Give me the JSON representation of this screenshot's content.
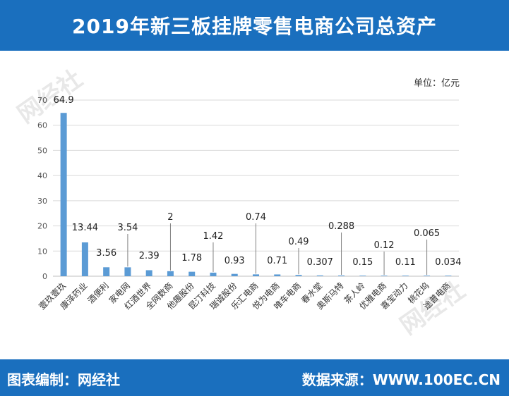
{
  "header": {
    "title": "2019年新三板挂牌零售电商公司总资产"
  },
  "unit": "单位：亿元",
  "footer": {
    "left": "图表编制：网经社",
    "right": "数据来源：WWW.100EC.CN"
  },
  "watermark": {
    "text": "网经社"
  },
  "colors": {
    "bar": "#5b9bd5",
    "header": "#1a6fbe",
    "grid": "#d9d9d9"
  },
  "chart_data": {
    "type": "bar",
    "title": "2019年新三板挂牌零售电商公司总资产",
    "ylabel": "单位：亿元",
    "ylim": [
      0,
      70
    ],
    "yticks": [
      0,
      10,
      20,
      30,
      40,
      50,
      60,
      70
    ],
    "grid": true,
    "categories": [
      "壹玖壹玖",
      "康泽药业",
      "酒便利",
      "家电网",
      "红酒世界",
      "全网数商",
      "他趣股份",
      "昆汀科技",
      "瑞诚股份",
      "乐汇电商",
      "悦为电商",
      "唯车电商",
      "春水堂",
      "奥斯马特",
      "茶人岭",
      "优雅电商",
      "喜宝动力",
      "桃花坞",
      "途普电商"
    ],
    "values": [
      64.9,
      13.44,
      3.56,
      3.54,
      2.39,
      2,
      1.78,
      1.42,
      0.93,
      0.74,
      0.71,
      0.49,
      0.307,
      0.288,
      0.15,
      0.12,
      0.11,
      0.065,
      0.034
    ],
    "labels": [
      "64.9",
      "13.44",
      "3.56",
      "3.54",
      "2.39",
      "2",
      "1.78",
      "1.42",
      "0.93",
      "0.74",
      "0.71",
      "0.49",
      "0.307",
      "0.288",
      "0.15",
      "0.12",
      "0.11",
      "0.065",
      "0.034"
    ]
  }
}
